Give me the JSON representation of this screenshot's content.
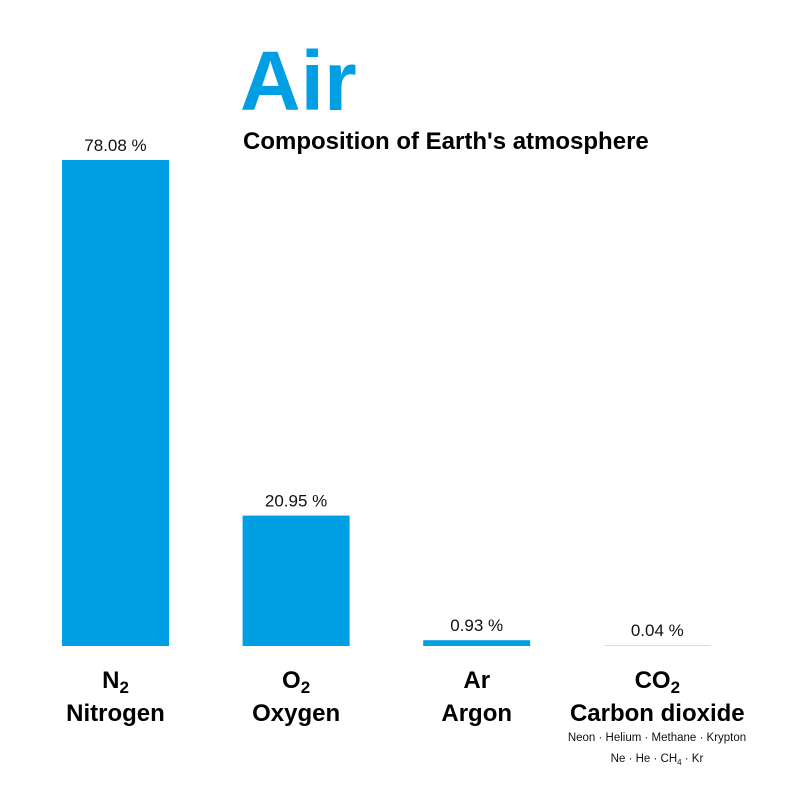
{
  "chart_data": {
    "type": "bar",
    "title": "Air",
    "subtitle": "Composition of Earth's atmosphere",
    "categories": [
      "Nitrogen",
      "Oxygen",
      "Argon",
      "Carbon dioxide"
    ],
    "formulas": [
      {
        "base": "N",
        "sub": "2"
      },
      {
        "base": "O",
        "sub": "2"
      },
      {
        "base": "Ar",
        "sub": ""
      },
      {
        "base": "CO",
        "sub": "2"
      }
    ],
    "values": [
      78.08,
      20.95,
      0.93,
      0.04
    ],
    "value_labels": [
      "78.08 %",
      "20.95 %",
      "0.93 %",
      "0.04 %"
    ],
    "unit": "%",
    "ylim": [
      0,
      78.08
    ],
    "grid": false,
    "colors": {
      "bar": "#009fe3",
      "bar_trace": "#bfe6f6",
      "title": "#009fe3"
    },
    "footnote": {
      "names": "Neon · Helium · Methane · Krypton",
      "symbols": [
        {
          "base": "Ne · He · CH",
          "sub": "4",
          "rest": " · Kr"
        }
      ]
    }
  }
}
